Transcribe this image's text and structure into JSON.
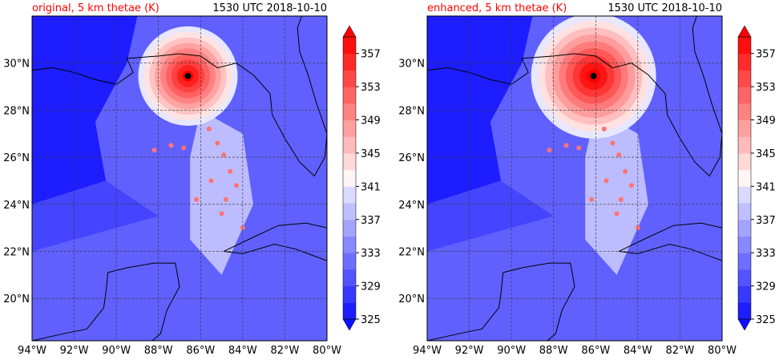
{
  "chart_data": [
    {
      "type": "heatmap",
      "title": "original, 5 km thetae (K)",
      "title_color": "#ff0000",
      "time_label": "1530 UTC 2018-10-10",
      "x_ticks": [
        "94°W",
        "92°W",
        "90°W",
        "88°W",
        "86°W",
        "84°W",
        "82°W",
        "80°W"
      ],
      "x_tick_values": [
        -94,
        -92,
        -90,
        -88,
        -86,
        -84,
        -82,
        -80
      ],
      "y_ticks": [
        "20°N",
        "22°N",
        "24°N",
        "26°N",
        "28°N",
        "30°N"
      ],
      "y_tick_values": [
        20,
        22,
        24,
        26,
        28,
        30
      ],
      "xlim": [
        -94,
        -80
      ],
      "ylim": [
        18.2,
        32
      ],
      "grid": true,
      "colorbar": {
        "levels": [
          325,
          327,
          329,
          331,
          333,
          335,
          337,
          339,
          341,
          343,
          345,
          347,
          349,
          351,
          353,
          355,
          357,
          359
        ],
        "tick_labels": [
          "325",
          "329",
          "333",
          "337",
          "341",
          "345",
          "349",
          "353",
          "357"
        ],
        "tick_values": [
          325,
          329,
          333,
          337,
          341,
          345,
          349,
          353,
          357
        ],
        "extend": "both",
        "cmap": "bwr"
      },
      "storm_center": {
        "lon": -86.6,
        "lat": 29.45
      },
      "storm_max_thetae": 359,
      "background_thetae": 331
    },
    {
      "type": "heatmap",
      "title": "enhanced, 5 km thetae (K)",
      "title_color": "#ff0000",
      "time_label": "1530 UTC 2018-10-10",
      "x_ticks": [
        "94°W",
        "92°W",
        "90°W",
        "88°W",
        "86°W",
        "84°W",
        "82°W",
        "80°W"
      ],
      "x_tick_values": [
        -94,
        -92,
        -90,
        -88,
        -86,
        -84,
        -82,
        -80
      ],
      "y_ticks": [
        "20°N",
        "22°N",
        "24°N",
        "26°N",
        "28°N",
        "30°N"
      ],
      "y_tick_values": [
        20,
        22,
        24,
        26,
        28,
        30
      ],
      "xlim": [
        -94,
        -80
      ],
      "ylim": [
        18.2,
        32
      ],
      "grid": true,
      "colorbar": {
        "levels": [
          325,
          327,
          329,
          331,
          333,
          335,
          337,
          339,
          341,
          343,
          345,
          347,
          349,
          351,
          353,
          355,
          357,
          359
        ],
        "tick_labels": [
          "325",
          "329",
          "333",
          "337",
          "341",
          "345",
          "349",
          "353",
          "357"
        ],
        "tick_values": [
          325,
          329,
          333,
          337,
          341,
          345,
          349,
          353,
          357
        ],
        "extend": "both",
        "cmap": "bwr"
      },
      "storm_center": {
        "lon": -86.1,
        "lat": 29.45
      },
      "storm_max_thetae": 360,
      "background_thetae": 331
    }
  ]
}
